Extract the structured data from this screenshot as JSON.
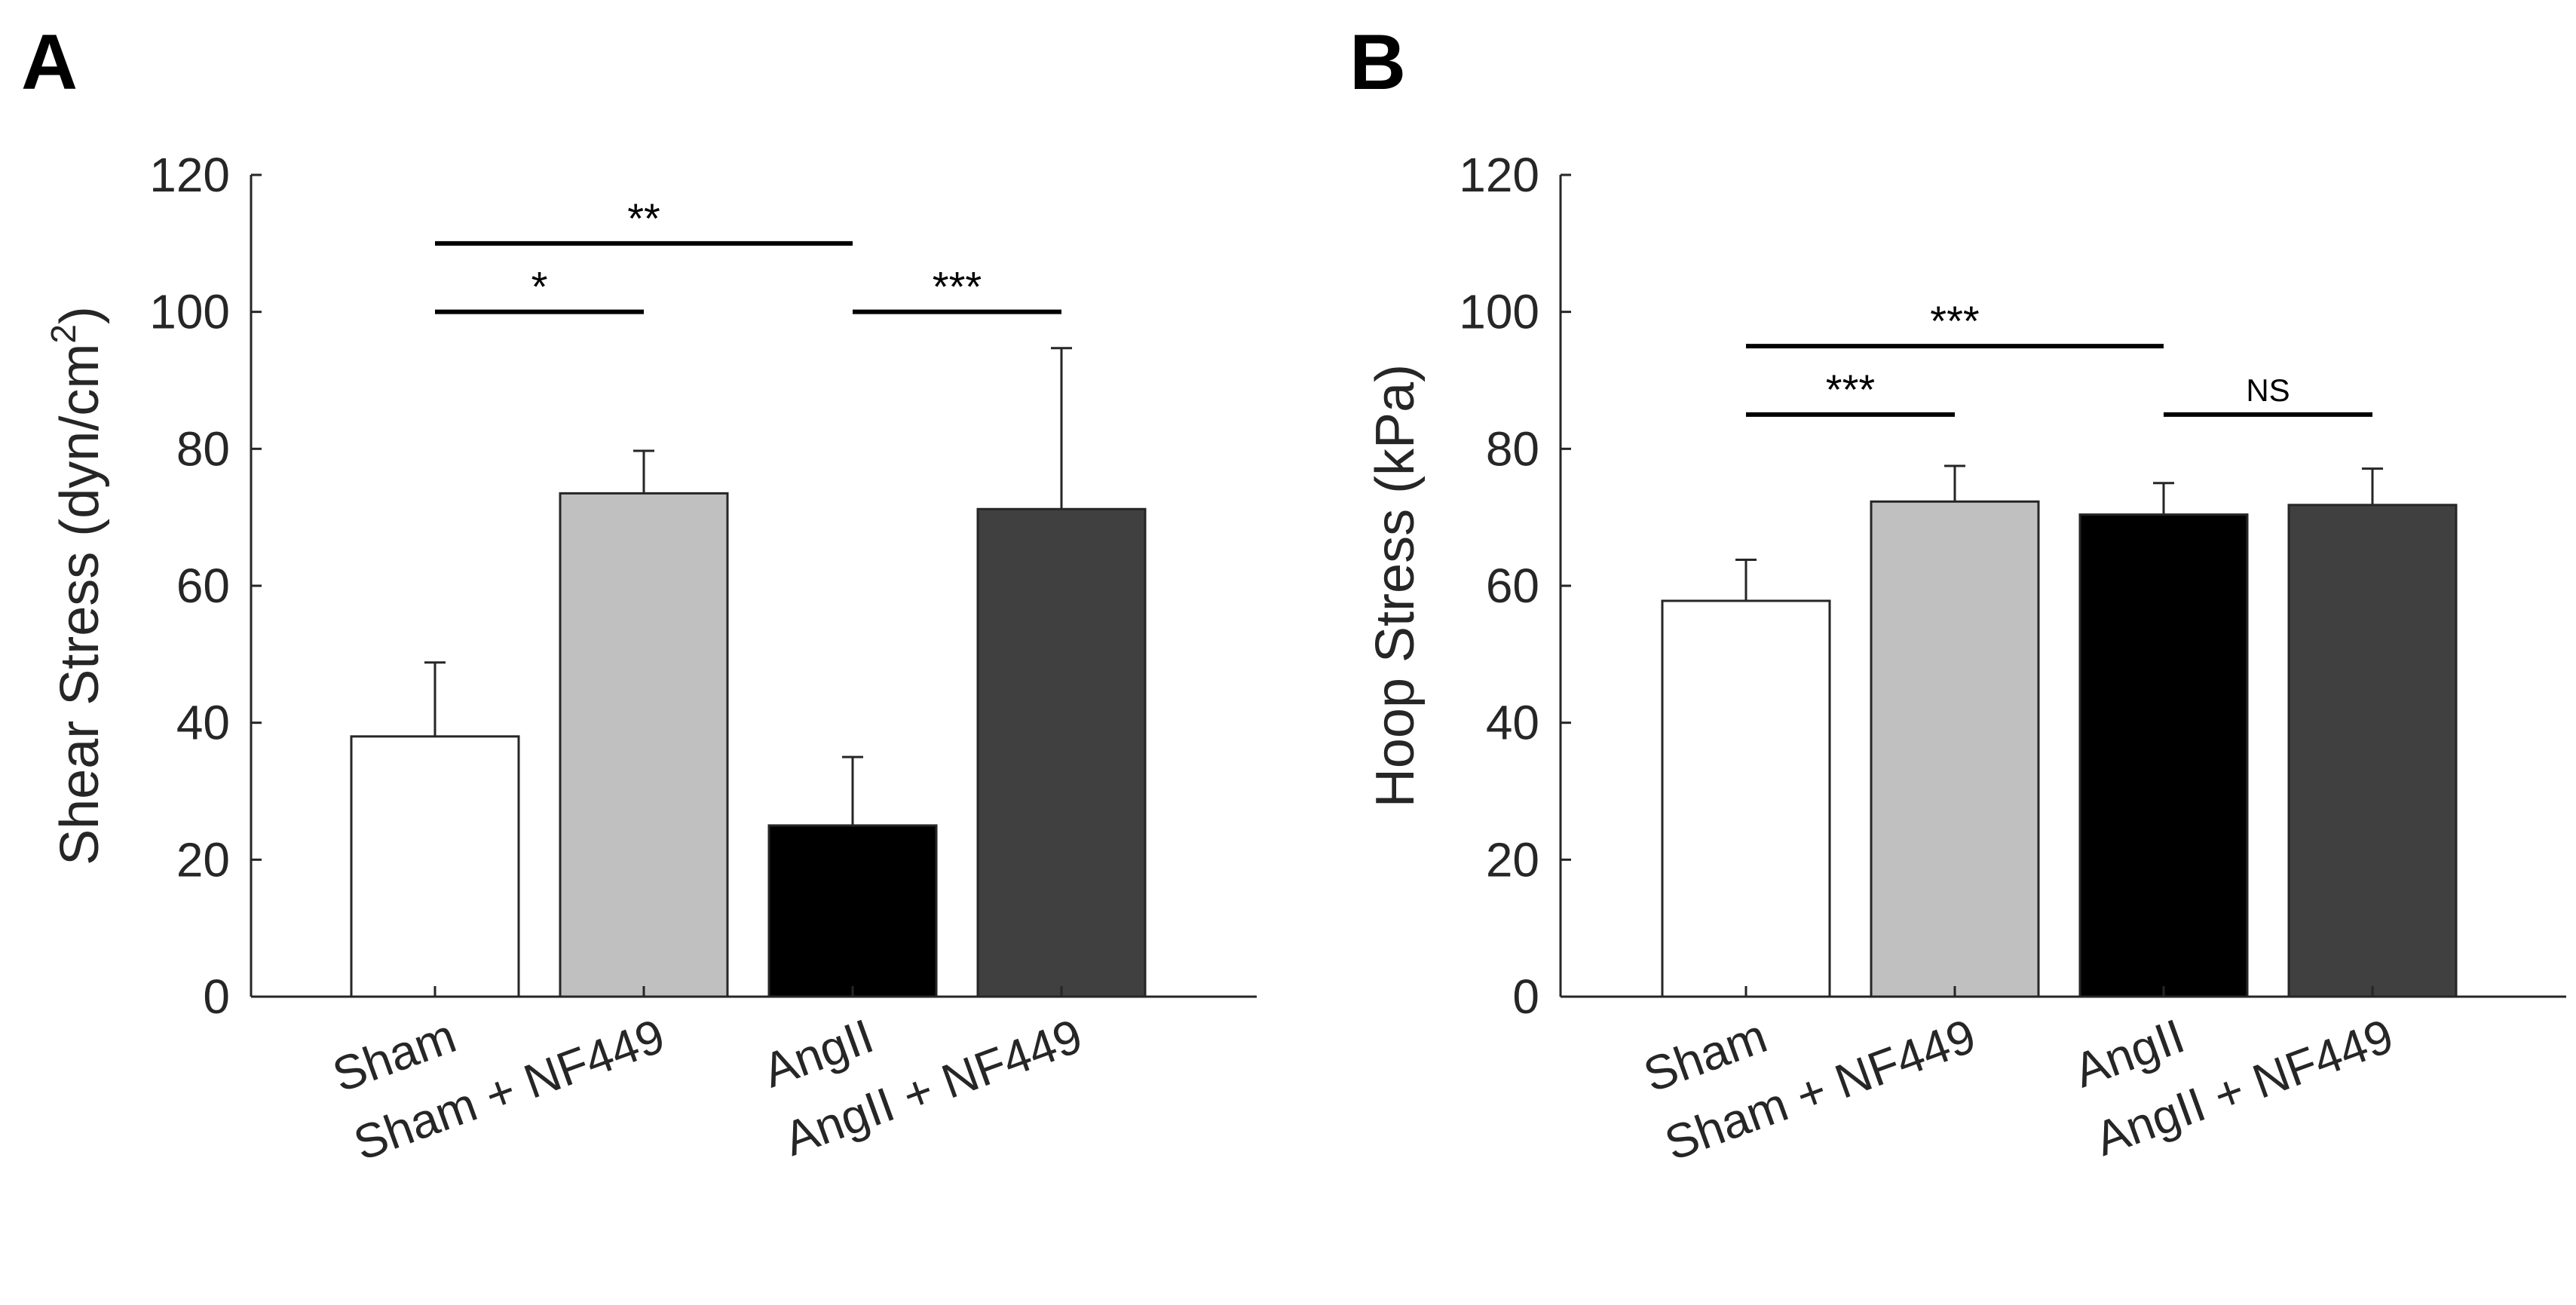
{
  "chart_data": [
    {
      "type": "bar",
      "panel_label": "A",
      "title": "",
      "xlabel": "",
      "ylabel": "Shear Stress (dyn/cm",
      "ylabel_superscript": "2",
      "ylabel_suffix": ")",
      "ylim": [
        0,
        120
      ],
      "yticks": [
        0,
        20,
        40,
        60,
        80,
        100,
        120
      ],
      "grid": false,
      "categories": [
        "Sham",
        "Sham + NF449",
        "AngII",
        "AngII + NF449"
      ],
      "values": [
        38,
        73.5,
        25,
        71.2
      ],
      "errors": [
        10.8,
        6.2,
        10,
        23.5
      ],
      "colors": [
        "#ffffff",
        "#c0c0c0",
        "#000000",
        "#404040"
      ],
      "comparisons": [
        {
          "from": 0,
          "to": 2,
          "y": 110,
          "label": "**"
        },
        {
          "from": 0,
          "to": 1,
          "y": 100,
          "label": "*"
        },
        {
          "from": 2,
          "to": 3,
          "y": 100,
          "label": "***"
        }
      ]
    },
    {
      "type": "bar",
      "panel_label": "B",
      "title": "",
      "xlabel": "",
      "ylabel": "Hoop Stress (kPa)",
      "ylabel_superscript": "",
      "ylabel_suffix": "",
      "ylim": [
        0,
        120
      ],
      "yticks": [
        0,
        20,
        40,
        60,
        80,
        100,
        120
      ],
      "grid": false,
      "categories": [
        "Sham",
        "Sham + NF449",
        "AngII",
        "AngII + NF449"
      ],
      "values": [
        57.8,
        72.3,
        70.4,
        71.8
      ],
      "errors": [
        6,
        5.2,
        4.6,
        5.3
      ],
      "colors": [
        "#ffffff",
        "#c0c0c0",
        "#000000",
        "#404040"
      ],
      "comparisons": [
        {
          "from": 0,
          "to": 2,
          "y": 95,
          "label": "***"
        },
        {
          "from": 0,
          "to": 1,
          "y": 85,
          "label": "***"
        },
        {
          "from": 2,
          "to": 3,
          "y": 85,
          "label": "NS"
        }
      ]
    }
  ]
}
